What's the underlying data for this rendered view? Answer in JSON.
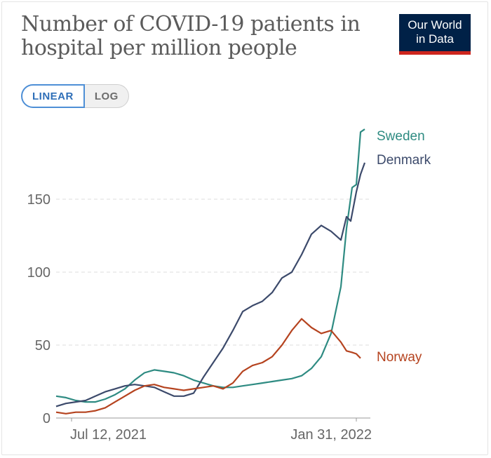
{
  "header": {
    "title_line1": "Number of COVID-19 patients in",
    "title_line2": "hospital per million people",
    "logo_line1": "Our World",
    "logo_line2": "in Data"
  },
  "scale_toggle": {
    "linear_label": "LINEAR",
    "log_label": "LOG",
    "selected": "LINEAR"
  },
  "colors": {
    "sweden": "#2e8b82",
    "denmark": "#3c4a6b",
    "norway": "#b5431f",
    "grid": "#dddddd",
    "axis": "#999999"
  },
  "chart_data": {
    "type": "line",
    "title": "Number of COVID-19 patients in hospital per million people",
    "xlabel": "",
    "ylabel": "",
    "y_ticks": [
      "0",
      "50",
      "100",
      "150"
    ],
    "ylim": [
      0,
      200
    ],
    "xlim": [
      "2021-07-01",
      "2022-02-10"
    ],
    "x_ticks": [
      {
        "date": "2021-07-12",
        "label": "Jul 12, 2021"
      },
      {
        "date": "2022-01-31",
        "label": "Jan 31, 2022"
      }
    ],
    "grid": true,
    "legend": "right (end-of-line labels)",
    "series": [
      {
        "name": "Sweden",
        "points": [
          [
            "2021-07-01",
            15
          ],
          [
            "2021-07-08",
            14
          ],
          [
            "2021-07-15",
            12
          ],
          [
            "2021-07-22",
            11
          ],
          [
            "2021-07-29",
            11
          ],
          [
            "2021-08-05",
            13
          ],
          [
            "2021-08-12",
            16
          ],
          [
            "2021-08-19",
            20
          ],
          [
            "2021-08-26",
            26
          ],
          [
            "2021-09-02",
            31
          ],
          [
            "2021-09-09",
            33
          ],
          [
            "2021-09-16",
            32
          ],
          [
            "2021-09-23",
            31
          ],
          [
            "2021-09-30",
            29
          ],
          [
            "2021-10-07",
            26
          ],
          [
            "2021-10-14",
            24
          ],
          [
            "2021-10-21",
            22
          ],
          [
            "2021-10-28",
            21
          ],
          [
            "2021-11-04",
            21
          ],
          [
            "2021-11-11",
            22
          ],
          [
            "2021-11-18",
            23
          ],
          [
            "2021-11-25",
            24
          ],
          [
            "2021-12-02",
            25
          ],
          [
            "2021-12-09",
            26
          ],
          [
            "2021-12-16",
            27
          ],
          [
            "2021-12-23",
            29
          ],
          [
            "2021-12-30",
            34
          ],
          [
            "2022-01-06",
            42
          ],
          [
            "2022-01-13",
            58
          ],
          [
            "2022-01-20",
            90
          ],
          [
            "2022-01-24",
            130
          ],
          [
            "2022-01-28",
            158
          ],
          [
            "2022-01-31",
            160
          ],
          [
            "2022-02-03",
            196
          ],
          [
            "2022-02-06",
            198
          ]
        ]
      },
      {
        "name": "Denmark",
        "points": [
          [
            "2021-07-01",
            8
          ],
          [
            "2021-07-08",
            10
          ],
          [
            "2021-07-15",
            11
          ],
          [
            "2021-07-22",
            12
          ],
          [
            "2021-07-29",
            15
          ],
          [
            "2021-08-05",
            18
          ],
          [
            "2021-08-12",
            20
          ],
          [
            "2021-08-19",
            22
          ],
          [
            "2021-08-26",
            23
          ],
          [
            "2021-09-02",
            22
          ],
          [
            "2021-09-09",
            21
          ],
          [
            "2021-09-16",
            18
          ],
          [
            "2021-09-23",
            15
          ],
          [
            "2021-09-30",
            15
          ],
          [
            "2021-10-07",
            17
          ],
          [
            "2021-10-14",
            28
          ],
          [
            "2021-10-21",
            38
          ],
          [
            "2021-10-28",
            48
          ],
          [
            "2021-11-04",
            60
          ],
          [
            "2021-11-11",
            73
          ],
          [
            "2021-11-18",
            77
          ],
          [
            "2021-11-25",
            80
          ],
          [
            "2021-12-02",
            86
          ],
          [
            "2021-12-09",
            96
          ],
          [
            "2021-12-16",
            100
          ],
          [
            "2021-12-23",
            112
          ],
          [
            "2021-12-30",
            126
          ],
          [
            "2022-01-06",
            132
          ],
          [
            "2022-01-13",
            128
          ],
          [
            "2022-01-20",
            122
          ],
          [
            "2022-01-24",
            138
          ],
          [
            "2022-01-27",
            135
          ],
          [
            "2022-01-31",
            155
          ],
          [
            "2022-02-03",
            167
          ],
          [
            "2022-02-06",
            175
          ]
        ]
      },
      {
        "name": "Norway",
        "points": [
          [
            "2021-07-01",
            4
          ],
          [
            "2021-07-08",
            3
          ],
          [
            "2021-07-15",
            4
          ],
          [
            "2021-07-22",
            4
          ],
          [
            "2021-07-29",
            5
          ],
          [
            "2021-08-05",
            7
          ],
          [
            "2021-08-12",
            11
          ],
          [
            "2021-08-19",
            15
          ],
          [
            "2021-08-26",
            19
          ],
          [
            "2021-09-02",
            22
          ],
          [
            "2021-09-09",
            23
          ],
          [
            "2021-09-16",
            21
          ],
          [
            "2021-09-23",
            20
          ],
          [
            "2021-09-30",
            19
          ],
          [
            "2021-10-07",
            20
          ],
          [
            "2021-10-14",
            21
          ],
          [
            "2021-10-21",
            22
          ],
          [
            "2021-10-28",
            20
          ],
          [
            "2021-11-04",
            24
          ],
          [
            "2021-11-11",
            32
          ],
          [
            "2021-11-18",
            36
          ],
          [
            "2021-11-25",
            38
          ],
          [
            "2021-12-02",
            42
          ],
          [
            "2021-12-09",
            50
          ],
          [
            "2021-12-16",
            60
          ],
          [
            "2021-12-23",
            68
          ],
          [
            "2021-12-30",
            62
          ],
          [
            "2022-01-06",
            58
          ],
          [
            "2022-01-13",
            60
          ],
          [
            "2022-01-20",
            52
          ],
          [
            "2022-01-24",
            46
          ],
          [
            "2022-01-28",
            45
          ],
          [
            "2022-01-31",
            44
          ],
          [
            "2022-02-03",
            41
          ]
        ]
      }
    ]
  }
}
